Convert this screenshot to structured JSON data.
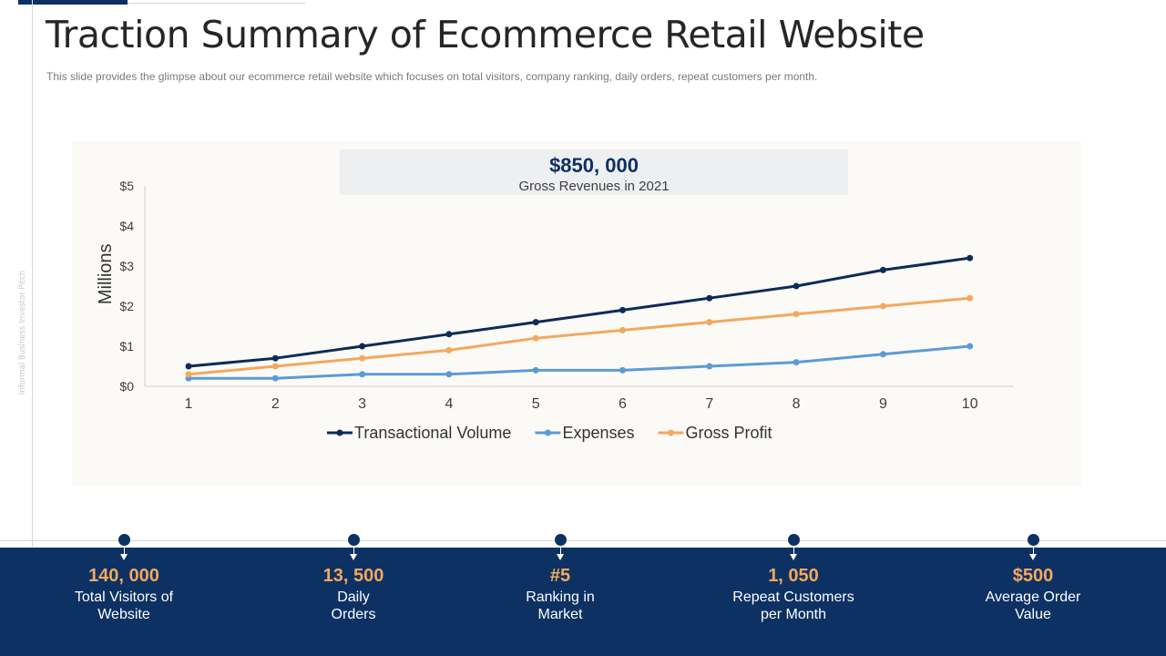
{
  "slide": {
    "title": "Traction Summary of Ecommerce Retail Website",
    "subtitle": "This slide provides  the glimpse about our ecommerce retail website which focuses on total visitors, company ranking, daily orders, repeat customers per month.",
    "side_label": "Informal Business Investor Pitch"
  },
  "highlight": {
    "value": "$850, 000",
    "caption": "Gross Revenues  in 2021"
  },
  "chart_data": {
    "type": "line",
    "x": [
      1,
      2,
      3,
      4,
      5,
      6,
      7,
      8,
      9,
      10
    ],
    "series": [
      {
        "name": "Transactional Volume",
        "color": "#0d2b57",
        "values": [
          0.5,
          0.7,
          1.0,
          1.3,
          1.6,
          1.9,
          2.2,
          2.5,
          2.9,
          3.2
        ]
      },
      {
        "name": "Expenses",
        "color": "#5b9bd5",
        "values": [
          0.2,
          0.2,
          0.3,
          0.3,
          0.4,
          0.4,
          0.5,
          0.6,
          0.8,
          1.0
        ]
      },
      {
        "name": "Gross Profit",
        "color": "#f4a85e",
        "values": [
          0.3,
          0.5,
          0.7,
          0.9,
          1.2,
          1.4,
          1.6,
          1.8,
          2.0,
          2.2
        ]
      }
    ],
    "ylabel": "Millions",
    "xlabel": "",
    "ylim": [
      0,
      5
    ],
    "yticks": [
      0,
      1,
      2,
      3,
      4,
      5
    ],
    "ytick_labels": [
      "$0",
      "$1",
      "$2",
      "$3",
      "$4",
      "$5"
    ],
    "xtick_labels": [
      "1",
      "2",
      "3",
      "4",
      "5",
      "6",
      "7",
      "8",
      "9",
      "10"
    ],
    "grid": false,
    "legend_position": "bottom"
  },
  "stats": [
    {
      "value": "140, 000",
      "label": "Total Visitors of\nWebsite"
    },
    {
      "value": "13, 500",
      "label": "Daily\nOrders"
    },
    {
      "value": "#5",
      "label": "Ranking in\nMarket"
    },
    {
      "value": "1, 050",
      "label": "Repeat Customers\nper Month"
    },
    {
      "value": "$500",
      "label": "Average Order\nValue"
    }
  ],
  "colors": {
    "navy": "#0d3163",
    "accent_orange": "#f4a85e",
    "accent_blue": "#5b9bd5"
  }
}
